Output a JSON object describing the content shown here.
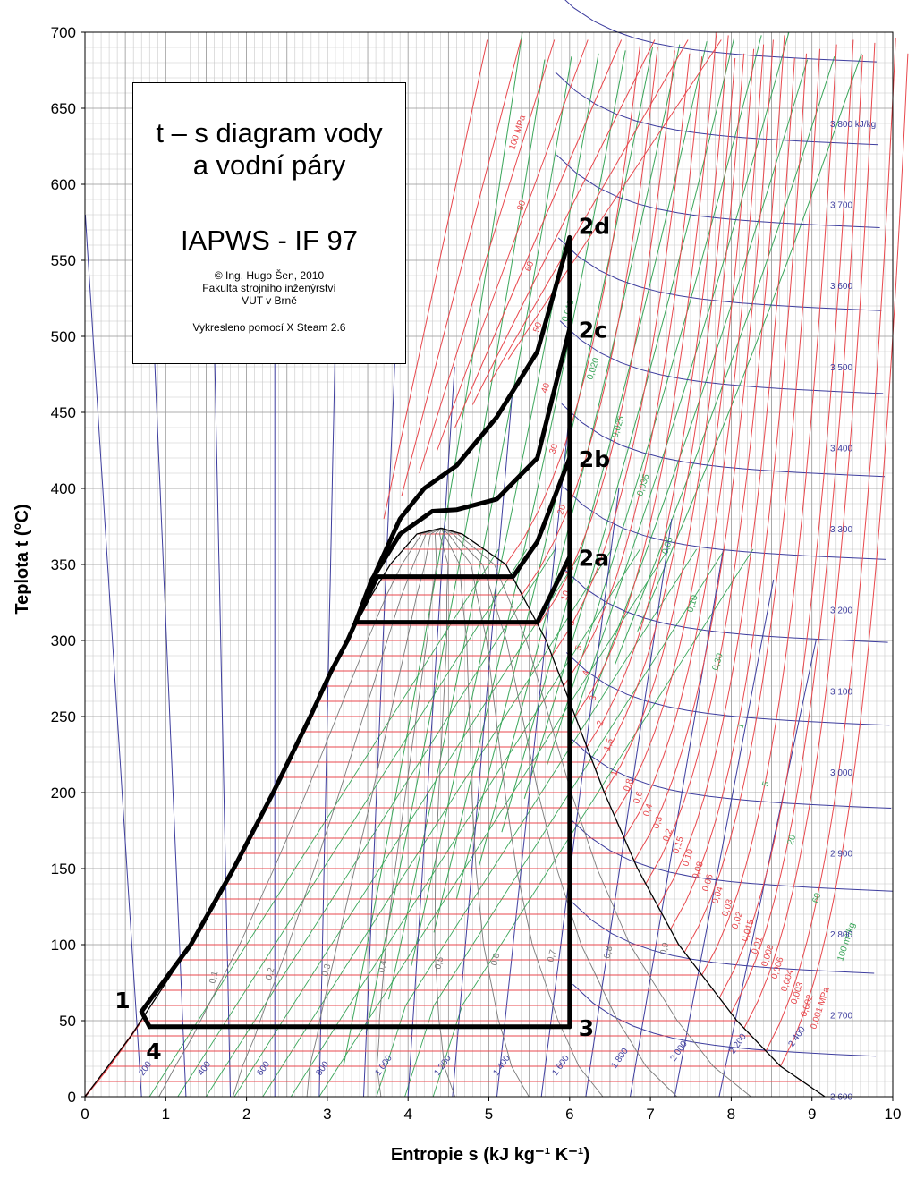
{
  "title_box": {
    "line1": "t – s  diagram vody",
    "line2": "a vodní páry",
    "line3": "IAPWS - IF 97",
    "line4": "© Ing. Hugo Šen, 2010",
    "line5": "Fakulta strojního inženýrství",
    "line6": "VUT v Brně",
    "line7": "Vykresleno pomocí X Steam 2.6"
  },
  "chart_data": {
    "type": "line",
    "xlabel": "Entropie  s  (kJ kg⁻¹ K⁻¹)",
    "ylabel": "Teplota  t  (°C)",
    "xlim": [
      0,
      10
    ],
    "ylim": [
      0,
      700
    ],
    "x_ticks": [
      "0",
      "1",
      "2",
      "3",
      "4",
      "5",
      "6",
      "7",
      "8",
      "9",
      "10"
    ],
    "y_ticks": [
      "0",
      "50",
      "100",
      "150",
      "200",
      "250",
      "300",
      "350",
      "400",
      "450",
      "500",
      "550",
      "600",
      "650",
      "700"
    ],
    "grid": true,
    "colors": {
      "isobar": "#e8474c",
      "isochore": "#3aa65a",
      "isenthalpe": "#3d3d9e",
      "quality": "#7a7a7a",
      "cycle": "#000000"
    },
    "saturation_dome": {
      "liquid": [
        [
          0,
          0
        ],
        [
          0.57,
          40
        ],
        [
          1.31,
          100
        ],
        [
          1.84,
          150
        ],
        [
          2.33,
          200
        ],
        [
          2.79,
          250
        ],
        [
          3.25,
          300
        ],
        [
          3.55,
          330
        ],
        [
          3.78,
          350
        ],
        [
          4.11,
          370
        ],
        [
          4.41,
          373.9
        ]
      ],
      "vapor": [
        [
          4.41,
          373.9
        ],
        [
          4.67,
          370
        ],
        [
          5.21,
          350
        ],
        [
          5.71,
          300
        ],
        [
          6.07,
          250
        ],
        [
          6.43,
          200
        ],
        [
          6.84,
          150
        ],
        [
          7.35,
          100
        ],
        [
          8.07,
          50
        ],
        [
          8.61,
          20
        ],
        [
          9.16,
          0
        ]
      ]
    },
    "cycle_points": [
      {
        "label": "1",
        "s": 0.7,
        "t": 56
      },
      {
        "label": "2a",
        "s": 6.0,
        "t": 355
      },
      {
        "label": "2b",
        "s": 6.0,
        "t": 420
      },
      {
        "label": "2c",
        "s": 6.0,
        "t": 505
      },
      {
        "label": "2d",
        "s": 6.0,
        "t": 565
      },
      {
        "label": "3",
        "s": 6.0,
        "t": 46
      },
      {
        "label": "4",
        "s": 0.8,
        "t": 46
      }
    ],
    "cycle_paths": {
      "pump_and_liquid": [
        [
          0.8,
          46
        ],
        [
          0.7,
          56
        ],
        [
          1.31,
          100
        ],
        [
          1.84,
          150
        ],
        [
          2.33,
          200
        ],
        [
          2.79,
          250
        ],
        [
          3.05,
          280
        ],
        [
          3.25,
          300
        ]
      ],
      "a": [
        [
          3.25,
          300
        ],
        [
          3.35,
          312
        ],
        [
          5.6,
          312
        ],
        [
          6.0,
          355
        ]
      ],
      "b": [
        [
          3.35,
          312
        ],
        [
          3.62,
          342
        ],
        [
          5.3,
          342
        ],
        [
          5.6,
          365
        ],
        [
          6.0,
          420
        ]
      ],
      "c": [
        [
          3.35,
          312
        ],
        [
          3.55,
          340
        ],
        [
          3.9,
          370
        ],
        [
          4.3,
          385
        ],
        [
          4.6,
          386
        ],
        [
          5.1,
          393
        ],
        [
          5.6,
          420
        ],
        [
          6.0,
          505
        ]
      ],
      "d": [
        [
          3.35,
          312
        ],
        [
          3.6,
          345
        ],
        [
          3.9,
          380
        ],
        [
          4.2,
          400
        ],
        [
          4.6,
          415
        ],
        [
          5.1,
          447
        ],
        [
          5.6,
          490
        ],
        [
          6.0,
          565
        ]
      ],
      "expansion": [
        [
          6.0,
          565
        ],
        [
          6.0,
          46
        ]
      ],
      "condensation": [
        [
          6.0,
          46
        ],
        [
          0.8,
          46
        ]
      ]
    },
    "isobar_labels": [
      "100  MPa",
      "80",
      "60",
      "50",
      "40",
      "30",
      "20",
      "15",
      "10",
      "8",
      "5",
      "4",
      "3",
      "2",
      "1,5",
      "1",
      "0,8",
      "0,6",
      "0,4",
      "0,3",
      "0,2",
      "0,15",
      "0,10",
      "0,08",
      "0,06",
      "0,04",
      "0,03",
      "0,02",
      "0,015",
      "0,01",
      "0,008",
      "0,006",
      "0,004",
      "0,003",
      "0,002",
      "0,001  MPa"
    ],
    "isochore_labels": [
      "0,015",
      "0,020",
      "0,025",
      "0,035",
      "0,05",
      "0,10",
      "0,30",
      "1",
      "5",
      "20",
      "60",
      "100 m³/kg"
    ],
    "enthalpy_labels_right": [
      "3 800 kJ/kg",
      "3 700",
      "3 600",
      "3 500",
      "3 400",
      "3 300",
      "3 200",
      "3 100",
      "3 000",
      "2 900",
      "2 800",
      "2 700",
      "2 600"
    ],
    "enthalpy_labels_bottom": [
      "200",
      "400",
      "600",
      "800",
      "1 000",
      "1 200",
      "1 400",
      "1 600",
      "1 800",
      "2 000",
      "2 200",
      "2 400"
    ],
    "quality_labels": [
      "0,1",
      "0,2",
      "0,3",
      "0,4",
      "0,5",
      "0,6",
      "0,7",
      "0,8",
      "0,9"
    ]
  }
}
